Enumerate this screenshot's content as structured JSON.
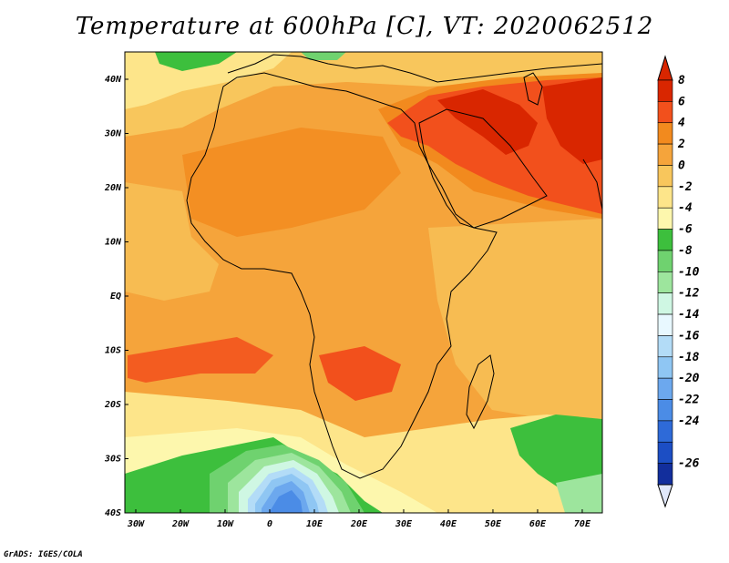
{
  "map": {
    "title": "Temperature at 600hPa [C], VT: 2020062512",
    "credit": "GrADS: IGES/COLA",
    "lon_ticks": [
      "30W",
      "20W",
      "10W",
      "0",
      "10E",
      "20E",
      "30E",
      "40E",
      "50E",
      "60E",
      "70E"
    ],
    "lat_ticks": [
      "40N",
      "30N",
      "20N",
      "10N",
      "EQ",
      "10S",
      "20S",
      "30S",
      "40S"
    ],
    "extent": {
      "lon_min": -30,
      "lon_max": 75,
      "lat_min": -40,
      "lat_max": 45
    },
    "colorbar": {
      "labels": [
        "8",
        "6",
        "4",
        "2",
        "0",
        "-2",
        "-4",
        "-6",
        "-8",
        "-10",
        "-12",
        "-14",
        "-16",
        "-18",
        "-20",
        "-22",
        "-24",
        "-26"
      ],
      "colors": [
        "#d92600",
        "#f2501c",
        "#f28a1e",
        "#f5a43b",
        "#f8c65c",
        "#fde58a",
        "#fdf7ad",
        "#3dbf3d",
        "#6fd26f",
        "#9de59d",
        "#cff7e3",
        "#e8f8ff",
        "#b3dcf7",
        "#8fc6f3",
        "#6ca8ee",
        "#4b8ce6",
        "#2e6ad8",
        "#1c4ec4",
        "#122e9c"
      ],
      "above_color": "#d92600",
      "below_color": "#e0e8fa"
    },
    "regions": [
      {
        "name": "background-warm-field",
        "color": "#f8c65c"
      },
      {
        "name": "ocean-warm-field",
        "color": "#f5a43b"
      },
      {
        "name": "arabia-hot-core",
        "color": "#d92600"
      },
      {
        "name": "southern-cold-pool",
        "color": "#2e6ad8"
      },
      {
        "name": "cool-green-band",
        "color": "#3dbf3d"
      }
    ]
  }
}
